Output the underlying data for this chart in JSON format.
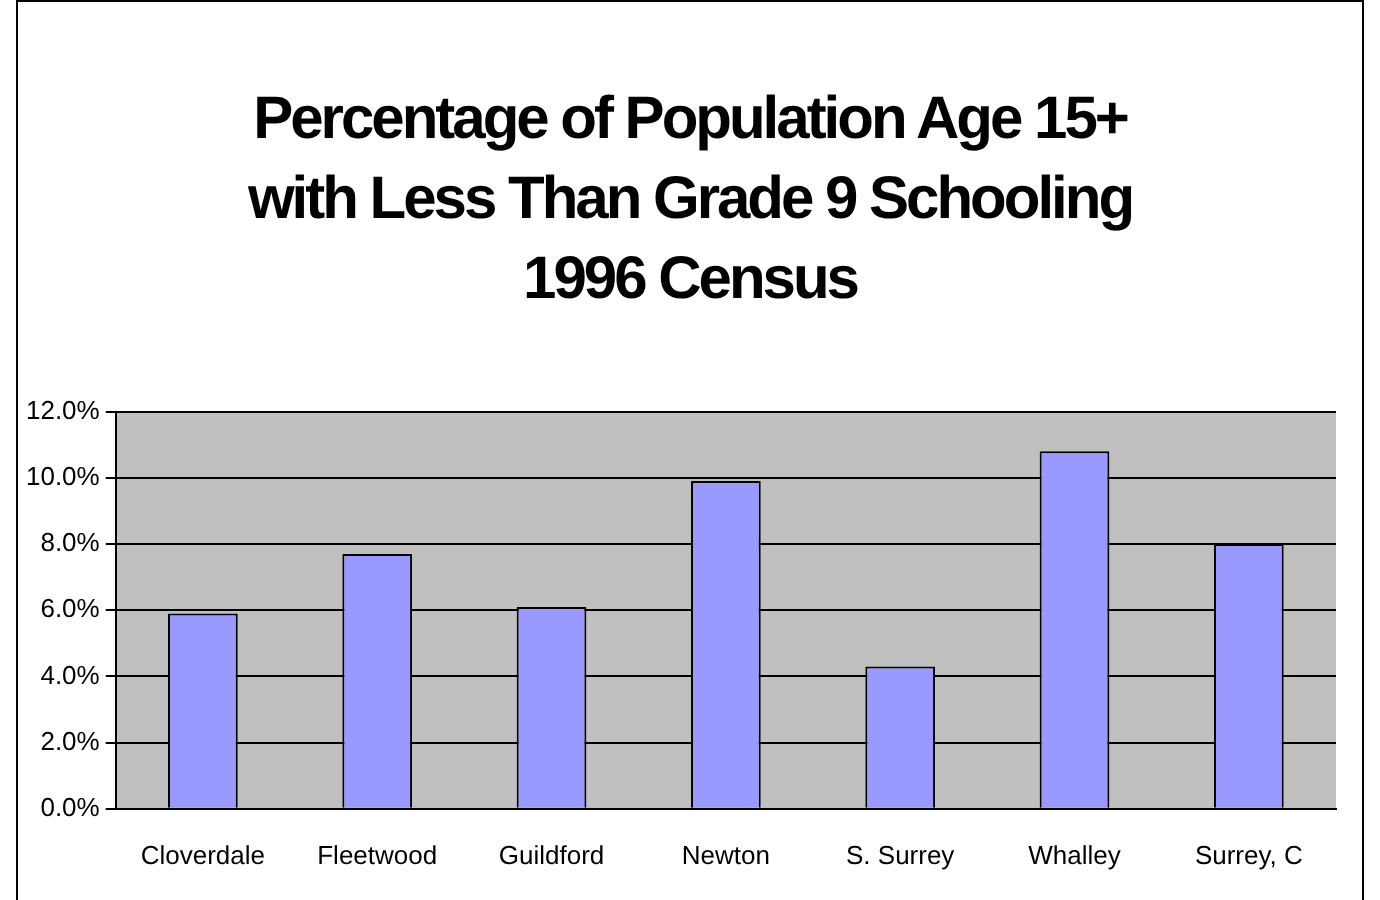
{
  "chart_data": {
    "type": "bar",
    "title": "Percentage of Population Age 15+\nwith Less Than Grade 9 Schooling\n1996 Census",
    "categories": [
      "Cloverdale",
      "Fleetwood",
      "Guildford",
      "Newton",
      "S. Surrey",
      "Whalley",
      "Surrey, C"
    ],
    "values": [
      5.9,
      7.7,
      6.1,
      9.9,
      4.3,
      10.8,
      8.0
    ],
    "color": "#9999ff",
    "ylim": [
      0,
      12
    ],
    "yticks": [
      {
        "value": 0,
        "label": "0.0%"
      },
      {
        "value": 2,
        "label": "2.0%"
      },
      {
        "value": 4,
        "label": "4.0%"
      },
      {
        "value": 6,
        "label": "6.0%"
      },
      {
        "value": 8,
        "label": "8.0%"
      },
      {
        "value": 10,
        "label": "10.0%"
      },
      {
        "value": 12,
        "label": "12.0%"
      }
    ],
    "grid": "y",
    "legend": false
  }
}
